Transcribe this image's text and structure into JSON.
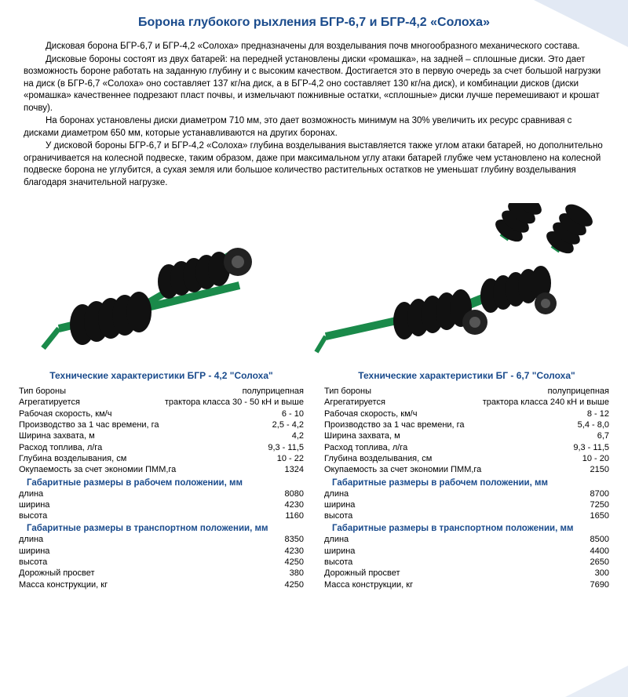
{
  "title": "Борона глубокого рыхления БГР-6,7 и БГР-4,2 «Солоха»",
  "colors": {
    "title": "#1a4b8c",
    "text": "#000000",
    "background": "#ffffff",
    "equipment_green": "#1a8a4a",
    "equipment_dark": "#1a1a1a"
  },
  "paragraphs": [
    "Дисковая борона БГР-6,7 и БГР-4,2 «Солоха» предназначены для возделывания почв многообразного механического состава.",
    "Дисковые бороны состоят из двух батарей: на передней установлены диски «ромашка», на задней – сплошные диски. Это дает возможность бороне работать на заданную глубину и с высоким качеством. Достигается это в первую очередь за счет большой нагрузки на диск (в БГР-6,7 «Солоха» оно составляет 137 кг/на диск, а в БГР-4,2 оно составляет 130 кг/на диск), и комбинации дисков (диски «ромашка» качественнее подрезают пласт почвы, и измельчают пожнивные остатки, «сплошные» диски лучше перемешивают и крошат почву).",
    "На боронах установлены диски диаметром 710 мм, это дает возможность минимум на 30% увеличить их ресурс сравнивая с дисками диаметром 650 мм, которые устанавливаются на других боронах.",
    "У дисковой бороны БГР-6,7 и БГР-4,2 «Солоха» глубина возделывания выставляется также углом атаки батарей, но дополнительно ограничивается на колесной подвеске, таким образом, даже при максимальном углу атаки батарей глубже чем установлено на колесной подвеске борона не углубится, а сухая земля или большое количество растительных остатков не уменьшат глубину возделывания благодаря значительной нагрузке."
  ],
  "left": {
    "title": "Технические характеристики БГР - 4,2 \"Солоха\"",
    "rows": [
      {
        "label": "Тип бороны",
        "value": "полуприцепная"
      },
      {
        "label": "Агрегатируется",
        "value": "трактора класса 30 - 50  кН и выше"
      },
      {
        "label": "Рабочая скорость, км/ч",
        "value": "6 - 10"
      },
      {
        "label": "Производство за 1 час времени, га",
        "value": "2,5 - 4,2"
      },
      {
        "label": "Ширина захвата, м",
        "value": "4,2"
      },
      {
        "label": "Расход топлива, л/га",
        "value": "9,3 - 11,5"
      },
      {
        "label": "Глубина возделывания, см",
        "value": "10 - 22"
      },
      {
        "label": "Окупаемость за счет  экономии ПММ,га",
        "value": "1324"
      }
    ],
    "sec1": {
      "title": "Габаритные размеры в рабочем положении, мм",
      "rows": [
        {
          "label": "длина",
          "value": "8080"
        },
        {
          "label": "ширина",
          "value": "4230"
        },
        {
          "label": "высота",
          "value": "1160"
        }
      ]
    },
    "sec2": {
      "title": "Габаритные размеры в транспортном положении, мм",
      "rows": [
        {
          "label": "длина",
          "value": "8350"
        },
        {
          "label": "ширина",
          "value": "4230"
        },
        {
          "label": "высота",
          "value": "4250"
        },
        {
          "label": "Дорожный просвет",
          "value": "380"
        },
        {
          "label": "Масса конструкции, кг",
          "value": "4250"
        }
      ]
    }
  },
  "right": {
    "title": "Технические характеристики БГ - 6,7 \"Солоха\"",
    "rows": [
      {
        "label": "Тип бороны",
        "value": "полуприцепная"
      },
      {
        "label": "Агрегатируется",
        "value": "трактора класса 240 кН и выше"
      },
      {
        "label": "Рабочая скорость, км/ч",
        "value": "8 - 12"
      },
      {
        "label": "Производство за 1 час времени, га",
        "value": "5,4 - 8,0"
      },
      {
        "label": "Ширина захвата, м",
        "value": "6,7"
      },
      {
        "label": "Расход топлива, л/га",
        "value": "9,3 - 11,5"
      },
      {
        "label": "Глубина возделывания, см",
        "value": "10 - 20"
      },
      {
        "label": "Окупаемость за счет  экономии ПММ,га",
        "value": "2150"
      }
    ],
    "sec1": {
      "title": "Габаритные размеры в рабочем положении, мм",
      "rows": [
        {
          "label": "длина",
          "value": "8700"
        },
        {
          "label": "ширина",
          "value": "7250"
        },
        {
          "label": "высота",
          "value": "1650"
        }
      ]
    },
    "sec2": {
      "title": "Габаритные размеры в транспортном положении, мм",
      "rows": [
        {
          "label": "длина",
          "value": "8500"
        },
        {
          "label": "ширина",
          "value": "4400"
        },
        {
          "label": "высота",
          "value": "2650"
        },
        {
          "label": "Дорожный просвет",
          "value": "300"
        },
        {
          "label": "Масса конструкции, кг",
          "value": "7690"
        }
      ]
    }
  }
}
